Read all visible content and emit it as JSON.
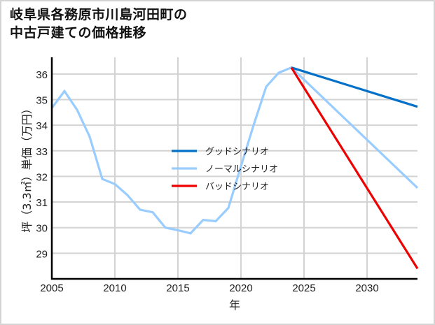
{
  "title_lines": [
    "岐阜県各務原市川島河田町の",
    "中古戸建ての価格推移"
  ],
  "chart_data": {
    "type": "line",
    "title": "岐阜県各務原市川島河田町の中古戸建ての価格推移",
    "xlabel": "年",
    "ylabel": "坪（3.3㎡）単価（万円）",
    "xlim": [
      2005,
      2034
    ],
    "ylim": [
      28.0,
      36.65
    ],
    "xticks": [
      2005,
      2010,
      2015,
      2020,
      2025,
      2030
    ],
    "yticks": [
      29,
      30,
      31,
      32,
      33,
      34,
      35,
      36
    ],
    "grid": true,
    "legend_position": "center",
    "series": [
      {
        "name": "グッドシナリオ",
        "color": "#0070c8",
        "x": [
          2024,
          2034
        ],
        "values": [
          36.25,
          34.72
        ]
      },
      {
        "name": "ノーマルシナリオ",
        "color": "#99ccff",
        "x": [
          2005,
          2006,
          2007,
          2008,
          2009,
          2010,
          2011,
          2012,
          2013,
          2014,
          2015,
          2016,
          2017,
          2018,
          2019,
          2020,
          2021,
          2022,
          2023,
          2024,
          2034
        ],
        "values": [
          34.67,
          35.33,
          34.6,
          33.55,
          31.9,
          31.7,
          31.27,
          30.7,
          30.6,
          30.0,
          29.9,
          29.78,
          30.3,
          30.25,
          30.77,
          32.4,
          34.0,
          35.5,
          36.05,
          36.25,
          31.55
        ]
      },
      {
        "name": "バッドシナリオ",
        "color": "#ee0000",
        "x": [
          2024,
          2034
        ],
        "values": [
          36.25,
          28.4
        ]
      }
    ]
  }
}
